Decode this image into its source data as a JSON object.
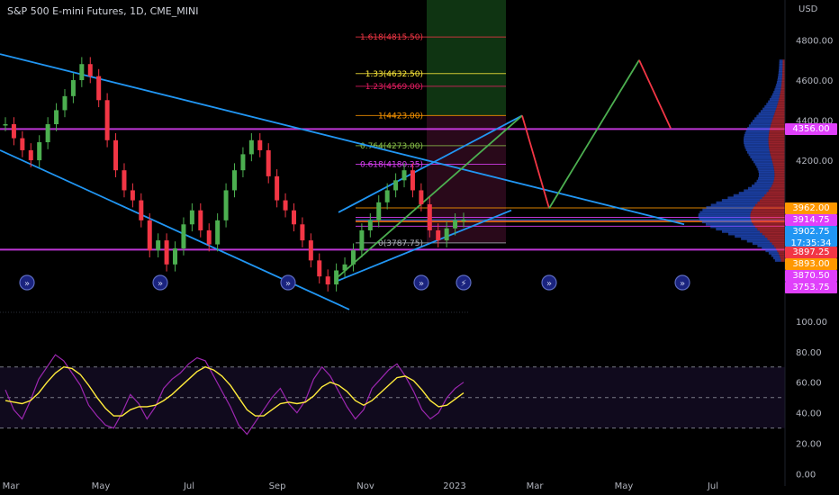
{
  "header": {
    "title": "S&P 500 E-mini Futures, 1D, CME_MINI",
    "currency": "USD"
  },
  "price_badges": [
    {
      "label": "4356.00",
      "color": "#e040fb",
      "price": 4356
    },
    {
      "label": "3962.00",
      "color": "#ff9800",
      "price": 3962
    },
    {
      "label": "3914.75",
      "color": "#e040fb",
      "price": 3914.75
    },
    {
      "label": "3902.75",
      "sub": "17:35:34",
      "color": "#2196f3",
      "price": 3902.75
    },
    {
      "label": "3897.25",
      "color": "#f23645",
      "price": 3897.25
    },
    {
      "label": "3893.00",
      "color": "#ff9800",
      "price": 3893
    },
    {
      "label": "3870.50",
      "color": "#e040fb",
      "price": 3870.5
    },
    {
      "label": "3753.75",
      "color": "#e040fb",
      "price": 3753.75
    }
  ],
  "fib_levels": [
    {
      "label": "1.618(4815.50)",
      "color": "#f23645",
      "value": 4815.5
    },
    {
      "label": "1.33(4632.50)",
      "color": "#ffeb3b",
      "value": 4632.5
    },
    {
      "label": "1.23(4569.00)",
      "color": "#e91e63",
      "value": 4569
    },
    {
      "label": "1(4423.00)",
      "color": "#ff9800",
      "value": 4423
    },
    {
      "label": "0.764(4273.00)",
      "color": "#8bc34a",
      "value": 4273
    },
    {
      "label": "0.618(4180.25)",
      "color": "#e040fb",
      "value": 4180.25
    },
    {
      "label": "0(3787.75)",
      "color": "#b2b5be",
      "value": 3787.75
    }
  ],
  "event_markers": [
    "»",
    "»",
    "»",
    "»",
    "⚡",
    "»",
    "»"
  ],
  "chart_data": [
    {
      "type": "candlestick",
      "title": "S&P 500 E-mini Futures, 1D, CME_MINI",
      "x_tick_labels": [
        "Mar",
        "May",
        "Jul",
        "Sep",
        "Nov",
        "2023",
        "Mar",
        "May",
        "Jul"
      ],
      "y_tick_labels": [
        "4800.00",
        "4600.00",
        "4400.00",
        "4200.00"
      ],
      "ylim": [
        3450,
        5000
      ],
      "series": [
        {
          "values": [
            4380,
            4310,
            4250,
            4200,
            4290,
            4380,
            4450,
            4520,
            4600,
            4680,
            4620,
            4500,
            4300,
            4150,
            4050,
            4000,
            3900,
            3750,
            3800,
            3680,
            3760,
            3880,
            3950,
            3850,
            3780,
            3900,
            4050,
            4150,
            4230,
            4300,
            4250,
            4120,
            4000,
            3950,
            3880,
            3800,
            3700,
            3620,
            3580,
            3650,
            3680,
            3750,
            3850,
            3900,
            3990,
            4050,
            4100,
            4150,
            4050,
            3980,
            3850,
            3800,
            3860,
            3900,
            3902.75
          ]
        }
      ]
    },
    {
      "type": "line",
      "title": "",
      "y_tick_labels": [
        "100.00",
        "80.00",
        "60.00",
        "40.00",
        "20.00",
        "0.00"
      ],
      "ylim": [
        -2,
        104
      ],
      "bands": [
        70,
        50,
        30
      ],
      "series": [
        {
          "color": "#9c27b0",
          "values": [
            55,
            42,
            36,
            48,
            62,
            70,
            78,
            74,
            66,
            58,
            45,
            38,
            32,
            30,
            40,
            52,
            46,
            36,
            44,
            56,
            62,
            66,
            72,
            76,
            74,
            64,
            54,
            44,
            32,
            26,
            34,
            42,
            50,
            56,
            46,
            40,
            48,
            62,
            70,
            64,
            54,
            44,
            36,
            42,
            56,
            62,
            68,
            72,
            64,
            54,
            42,
            36,
            40,
            50,
            56,
            60
          ]
        },
        {
          "color": "#ffeb3b",
          "values": [
            48,
            47,
            46,
            48,
            53,
            60,
            66,
            70,
            69,
            65,
            58,
            50,
            43,
            38,
            38,
            42,
            44,
            44,
            45,
            48,
            52,
            57,
            62,
            67,
            70,
            68,
            64,
            58,
            50,
            42,
            38,
            38,
            42,
            46,
            47,
            46,
            47,
            51,
            57,
            60,
            58,
            54,
            48,
            45,
            48,
            53,
            58,
            63,
            64,
            61,
            55,
            48,
            44,
            45,
            49,
            53
          ]
        }
      ]
    }
  ]
}
